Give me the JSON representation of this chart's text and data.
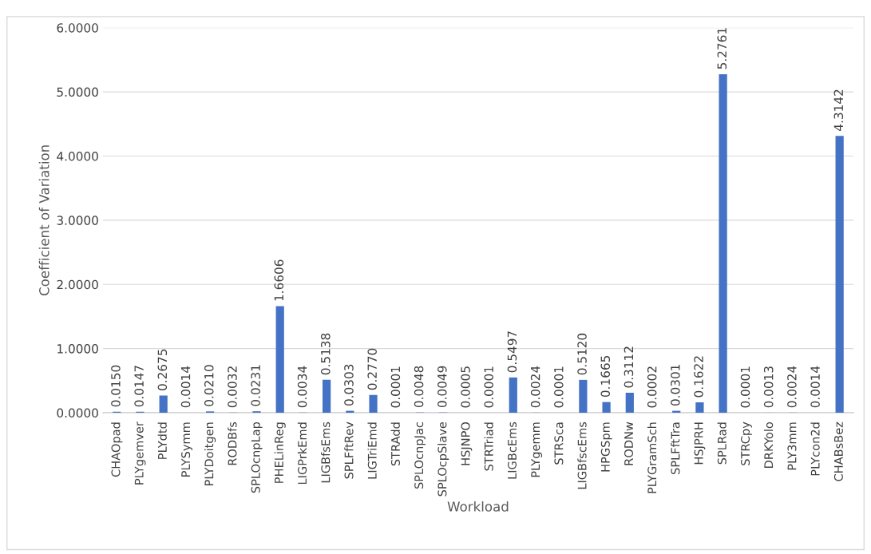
{
  "chart_data": {
    "type": "bar",
    "xlabel": "Workload",
    "ylabel": "Coefficient of Variation",
    "categories": [
      "CHAOpad",
      "PLYgemver",
      "PLYdtd",
      "PLYSymm",
      "PLYDoitgen",
      "RODBfs",
      "SPLOcnpLap",
      "PHELinReg",
      "LIGPrkEmd",
      "LIGBfsEms",
      "SPLFftRev",
      "LIGTriEmd",
      "STRAdd",
      "SPLOcnpJac",
      "SPLOcpSlave",
      "HSJNPO",
      "STRTriad",
      "LIGBcEms",
      "PLYgemm",
      "STRSca",
      "LIGBfscEms",
      "HPGSpm",
      "RODNw",
      "PLYGramSch",
      "SPLFftTra",
      "HSJPRH",
      "SPLRad",
      "STRCpy",
      "DRKYolo",
      "PLY3mm",
      "PLYcon2d",
      "CHABsBez"
    ],
    "values": [
      0.015,
      0.0147,
      0.2675,
      0.0014,
      0.021,
      0.0032,
      0.0231,
      1.6606,
      0.0034,
      0.5138,
      0.0303,
      0.277,
      0.0001,
      0.0048,
      0.0049,
      0.0005,
      0.0001,
      0.5497,
      0.0024,
      0.0001,
      0.512,
      0.1665,
      0.3112,
      0.0002,
      0.0301,
      0.1622,
      5.2761,
      0.0001,
      0.0013,
      0.0024,
      0.0014,
      4.3142
    ],
    "value_labels": [
      "0.0150",
      "0.0147",
      "0.2675",
      "0.0014",
      "0.0210",
      "0.0032",
      "0.0231",
      "1.6606",
      "0.0034",
      "0.5138",
      "0.0303",
      "0.2770",
      "0.0001",
      "0.0048",
      "0.0049",
      "0.0005",
      "0.0001",
      "0.5497",
      "0.0024",
      "0.0001",
      "0.5120",
      "0.1665",
      "0.3112",
      "0.0002",
      "0.0301",
      "0.1622",
      "5.2761",
      "0.0001",
      "0.0013",
      "0.0024",
      "0.0014",
      "4.3142"
    ],
    "color": "#4472c4",
    "ylim": [
      0,
      6
    ],
    "yticks": [
      {
        "value": 0,
        "label": "0.0000"
      },
      {
        "value": 1,
        "label": "1.0000"
      },
      {
        "value": 2,
        "label": "2.0000"
      },
      {
        "value": 3,
        "label": "3.0000"
      },
      {
        "value": 4,
        "label": "4.0000"
      },
      {
        "value": 5,
        "label": "5.0000"
      },
      {
        "value": 6,
        "label": "6.0000"
      }
    ],
    "grid": "y",
    "legend": false
  }
}
